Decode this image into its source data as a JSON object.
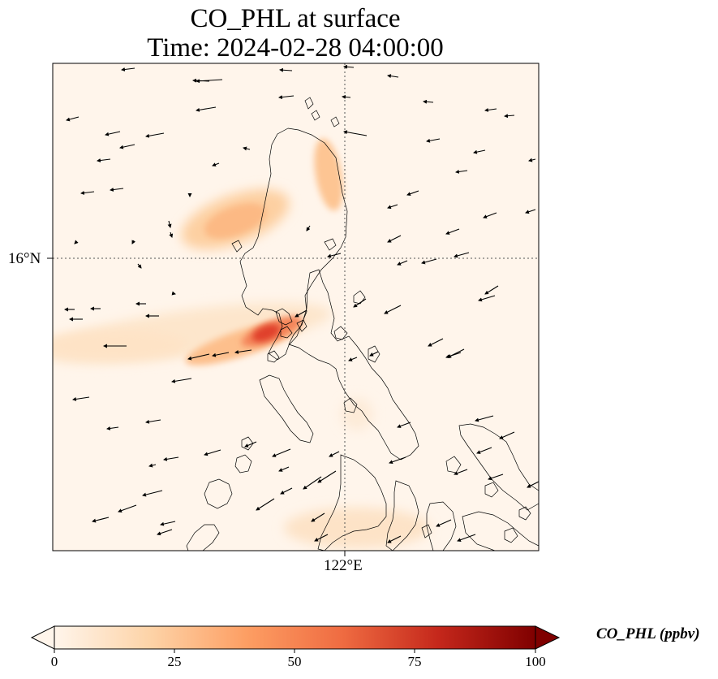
{
  "title": {
    "line1": "CO_PHL at surface",
    "line2": "Time: 2024-02-28 04:00:00"
  },
  "map": {
    "lat_tick_label": "16°N",
    "lon_tick_label": "122°E",
    "background_color": "#fff5eb"
  },
  "colorbar": {
    "label": "CO_PHL (ppbv)",
    "ticks": [
      "0",
      "25",
      "50",
      "75",
      "100"
    ],
    "colors": [
      "#fff5eb",
      "#fdd3a7",
      "#fd9e63",
      "#ef6b41",
      "#c4271b",
      "#7f0000"
    ]
  }
}
